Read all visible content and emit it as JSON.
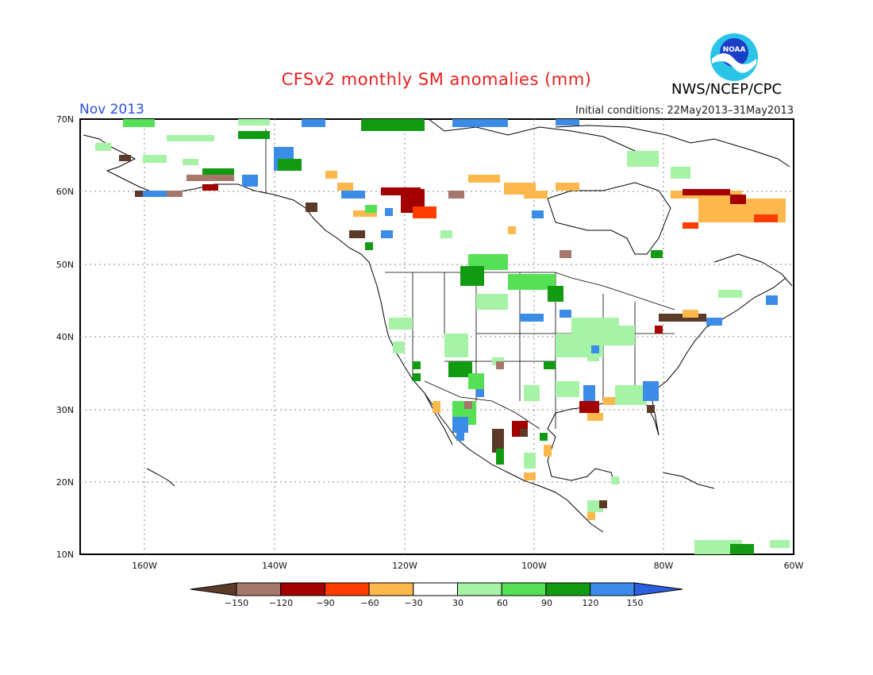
{
  "header": {
    "title": "CFSv2 monthly SM anomalies (mm)",
    "agency": "NWS/NCEP/CPC",
    "logo_text": "NOAA",
    "month": "Nov 2013",
    "initial_conditions": "Initial conditions: 22May2013–31May2013"
  },
  "map": {
    "lat_labels": [
      "70N",
      "60N",
      "50N",
      "40N",
      "30N",
      "20N",
      "10N"
    ],
    "lon_labels": [
      "160W",
      "140W",
      "120W",
      "100W",
      "80W",
      "60W"
    ],
    "lat_range": [
      10,
      70
    ],
    "lon_range": [
      -170,
      -60
    ]
  },
  "colorbar": {
    "labels": [
      "−150",
      "−120",
      "−90",
      "−60",
      "−30",
      "30",
      "60",
      "90",
      "120",
      "150"
    ],
    "colors": [
      "#5c3a2a",
      "#a6776b",
      "#a30000",
      "#ff3c00",
      "#fcb84c",
      "#ffffff",
      "#a6f2a6",
      "#55e055",
      "#139a13",
      "#3b8ce6",
      "#2b5fe0"
    ]
  }
}
